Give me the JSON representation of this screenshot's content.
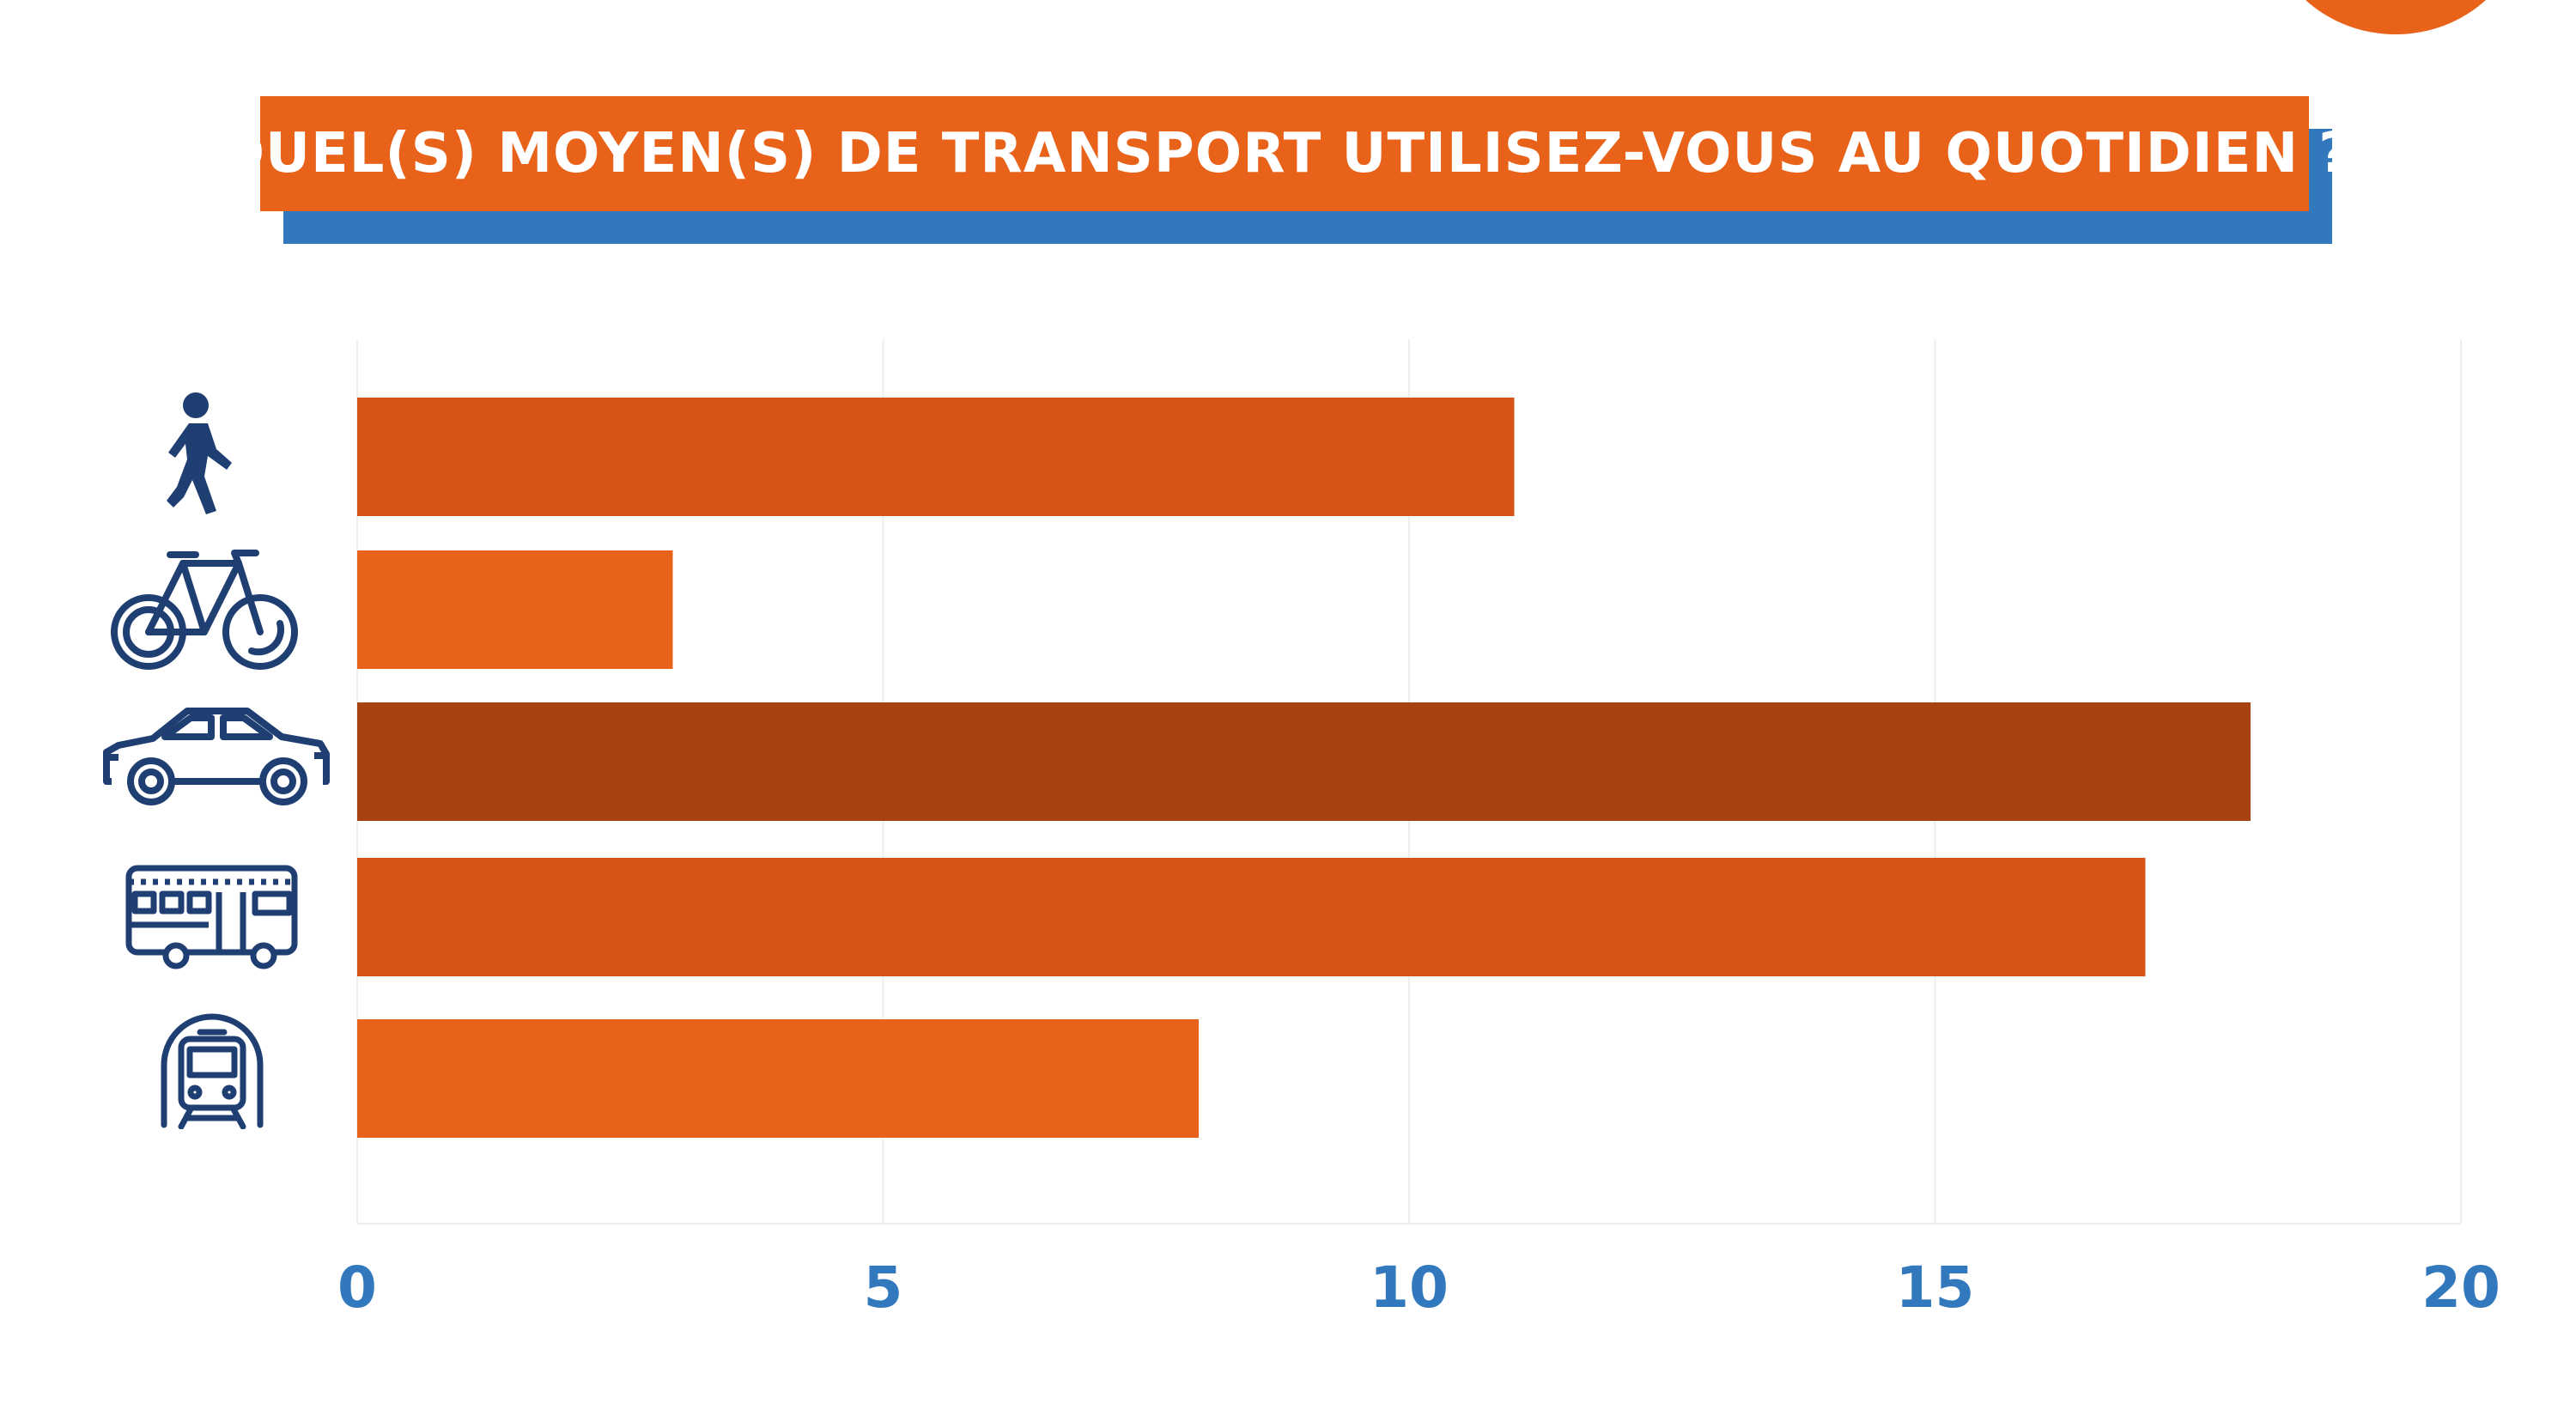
{
  "title": "QUEL(S) MOYEN(S) DE TRANSPORT UTILISEZ-VOUS AU QUOTIDIEN ?",
  "colors": {
    "accent_orange": "#e8621a",
    "accent_blue": "#3278bd",
    "icon_navy": "#1f3f73",
    "bar_colors": [
      "#d75514",
      "#e8621a",
      "#a84311",
      "#d75514",
      "#e8621a"
    ]
  },
  "chart_data": {
    "type": "bar",
    "orientation": "horizontal",
    "categories": [
      "walking-icon",
      "bicycle-icon",
      "car-icon",
      "bus-icon",
      "metro-icon"
    ],
    "values": [
      11,
      3,
      18,
      17,
      8
    ],
    "xlim": [
      0,
      20
    ],
    "xticks": [
      "0",
      "5",
      "10",
      "15",
      "20"
    ],
    "title": "QUEL(S) MOYEN(S) DE TRANSPORT UTILISEZ-VOUS AU QUOTIDIEN ?",
    "xlabel": "",
    "ylabel": "",
    "grid": true,
    "legend": "none"
  }
}
